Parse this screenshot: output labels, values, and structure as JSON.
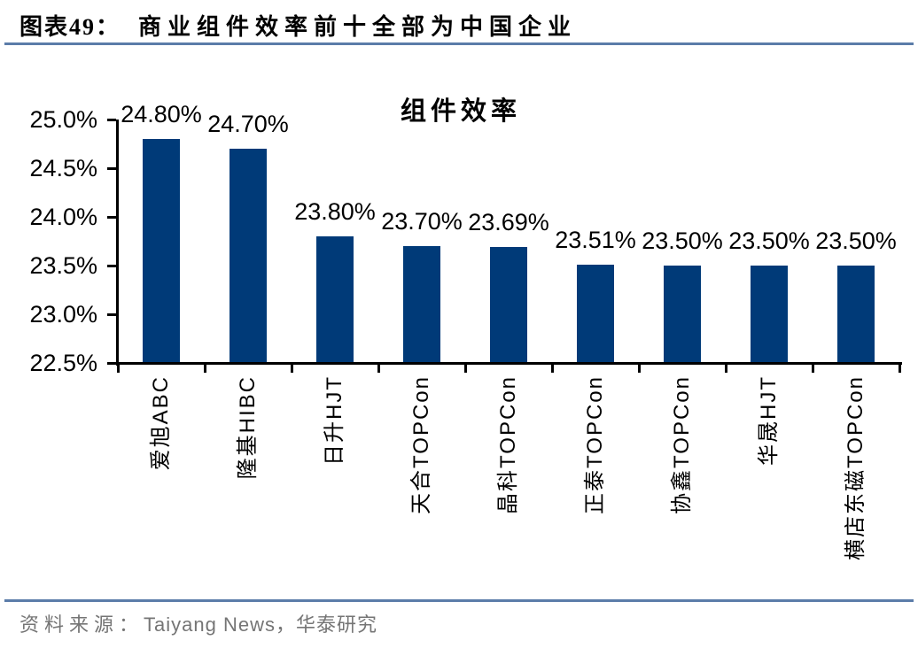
{
  "figure": {
    "label": "图表49：",
    "title": "商业组件效率前十全部为中国企业"
  },
  "source": {
    "prefix": "资料来源：",
    "text": "Taiyang News，华泰研究"
  },
  "colors": {
    "bar": "#003A78",
    "rule": "#5B7CA9",
    "axis": "#000000",
    "source_text": "#757575"
  },
  "chart_data": {
    "type": "bar",
    "title": "组件效率",
    "categories": [
      "爱旭ABC",
      "隆基HIBC",
      "日升HJT",
      "天合TOPCon",
      "晶科TOPCon",
      "正泰TOPCon",
      "协鑫TOPCon",
      "华晟HJT",
      "横店东磁TOPCon"
    ],
    "values": [
      24.8,
      24.7,
      23.8,
      23.7,
      23.69,
      23.51,
      23.5,
      23.5,
      23.5
    ],
    "value_labels": [
      "24.80%",
      "24.70%",
      "23.80%",
      "23.70%",
      "23.69%",
      "23.51%",
      "23.50%",
      "23.50%",
      "23.50%"
    ],
    "xlabel": "",
    "ylabel": "",
    "ylim": [
      22.5,
      25.0
    ],
    "ytick_step": 0.5,
    "ytick_labels": [
      "25.0%",
      "24.5%",
      "24.0%",
      "23.5%",
      "23.0%",
      "22.5%"
    ],
    "grid": false,
    "legend": "none",
    "bar_color": "#003A78"
  }
}
